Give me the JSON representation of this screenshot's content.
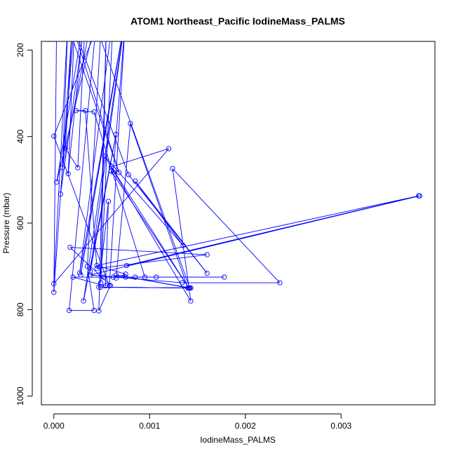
{
  "chart_data": {
    "type": "scatter",
    "title": "ATOM1 Northeast_Pacific IodineMass_PALMS",
    "xlabel": "IodineMass_PALMS",
    "ylabel": "Pressure (mbar)",
    "xlim": [
      -0.00013,
      0.00398
    ],
    "ylim": [
      1020,
      180
    ],
    "y_reversed": true,
    "x_ticks": [
      0.0,
      0.001,
      0.002,
      0.003
    ],
    "x_tick_labels": [
      "0.000",
      "0.001",
      "0.002",
      "0.003"
    ],
    "y_ticks": [
      200,
      400,
      600,
      800,
      1000
    ],
    "y_tick_labels": [
      "200",
      "400",
      "600",
      "800",
      "1000"
    ],
    "grid": false,
    "line_color": "#0000ff",
    "marker": "open-circle",
    "series": [
      {
        "points": [
          [
            3e-05,
            120
          ],
          [
            0.0,
            760
          ],
          [
            0.0002,
            120
          ],
          [
            0.00012,
            427
          ],
          [
            0.00025,
            472
          ],
          [
            0.00033,
            120
          ],
          [
            7e-05,
            533
          ],
          [
            0.00022,
            120
          ],
          [
            0.00015,
            486
          ],
          [
            0.00032,
            120
          ],
          [
            3e-05,
            505
          ],
          [
            0.00045,
            120
          ],
          [
            0.00016,
            802
          ],
          [
            0.00042,
            802
          ],
          [
            0.00035,
            700
          ],
          [
            0.0005,
            120
          ],
          [
            0.0,
            399
          ],
          [
            0.00058,
            745
          ],
          [
            0.00075,
            120
          ],
          [
            0.00031,
            780
          ],
          [
            0.00065,
            395
          ],
          [
            0.00038,
            712
          ],
          [
            0.00075,
            120
          ],
          [
            0.00028,
            720
          ],
          [
            0.00075,
            120
          ],
          [
            0.00027,
            715
          ],
          [
            0.00062,
            120
          ],
          [
            0.00049,
            738
          ],
          [
            0.00055,
            120
          ],
          [
            0.00047,
            803
          ],
          [
            0.00059,
            744
          ],
          [
            0.00017,
            656
          ],
          [
            0.0016,
            673
          ],
          [
            0.00045,
            705
          ],
          [
            0.00033,
            340
          ],
          [
            0.00023,
            340
          ],
          [
            0.00042,
            343
          ],
          [
            0.00095,
            725
          ],
          [
            0.00085,
            725
          ],
          [
            0.00107,
            725
          ],
          [
            0.00178,
            725
          ],
          [
            0.00052,
            725
          ],
          [
            0.00062,
            725
          ],
          [
            0.00075,
            725
          ],
          [
            0.0002,
            725
          ],
          [
            0.00054,
            745
          ],
          [
            0.00057,
            550
          ],
          [
            0.00047,
            748
          ],
          [
            0.0014,
            750
          ],
          [
            0.0008,
            370
          ],
          [
            0.00065,
            727
          ],
          [
            0.00075,
            718
          ],
          [
            0.00045,
            698
          ],
          [
            0.00381,
            537
          ],
          [
            0.00076,
            698
          ],
          [
            0.00382,
            537
          ],
          [
            0.00038,
            720
          ],
          [
            0.00134,
            738
          ],
          [
            0.00236,
            738
          ],
          [
            0.00124,
            474
          ],
          [
            0.00143,
            780
          ],
          [
            0.00053,
            445
          ],
          [
            0.00135,
            652
          ],
          [
            0.00085,
            503
          ],
          [
            0.0016,
            716
          ],
          [
            0.00078,
            488
          ],
          [
            0.00016,
            120
          ],
          [
            0.00068,
            483
          ],
          [
            0.00011,
            120
          ],
          [
            0.00075,
            120
          ],
          [
            0.00062,
            482
          ],
          [
            0.0006,
            480
          ],
          [
            0.00141,
            750
          ],
          [
            0.0006,
            470
          ],
          [
            0.0012,
            428
          ],
          [
            0.0,
            740
          ],
          [
            0.00015,
            120
          ],
          [
            9e-05,
            472
          ],
          [
            0.0004,
            120
          ],
          [
            0.00142,
            750
          ],
          [
            0.00049,
            748
          ],
          [
            0.00143,
            750
          ],
          [
            0.00065,
            720
          ],
          [
            0.00141,
            750
          ]
        ]
      }
    ]
  }
}
